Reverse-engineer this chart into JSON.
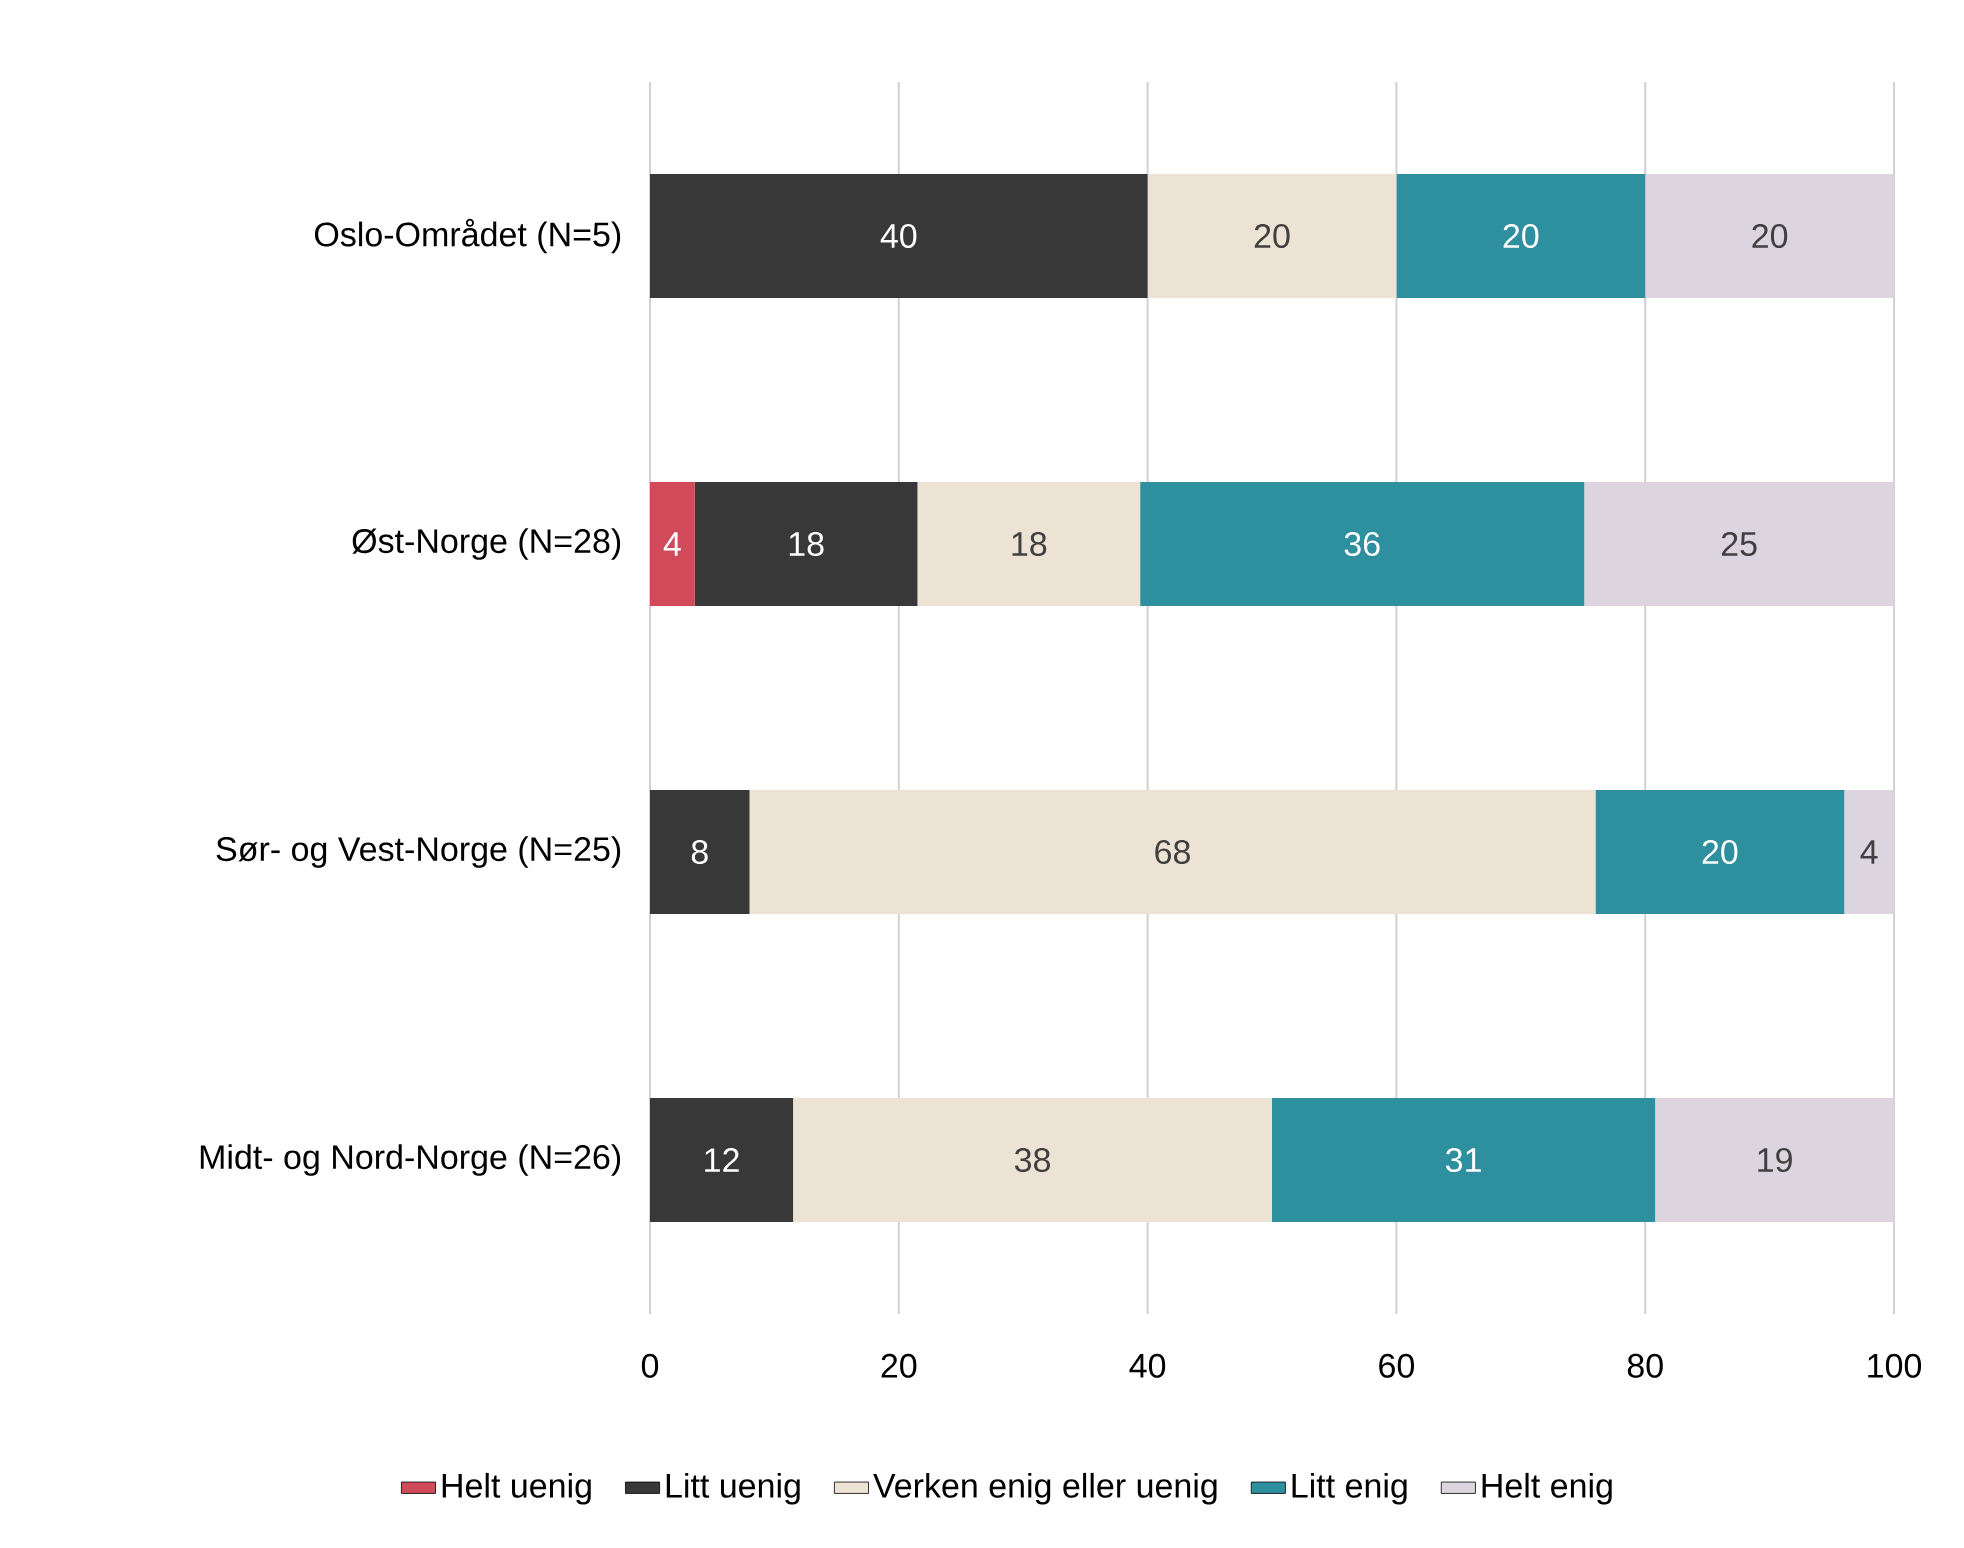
{
  "chart_data": {
    "type": "bar",
    "orientation": "horizontal",
    "stacked": true,
    "categories": [
      "Oslo-Området (N=5)",
      "Øst-Norge (N=28)",
      "Sør- og Vest-Norge (N=25)",
      "Midt- og Nord-Norge (N=26)"
    ],
    "series": [
      {
        "name": "Helt uenig",
        "color": "#d04a5a",
        "values": [
          0,
          3.6,
          0,
          0
        ],
        "value_labels": [
          null,
          "4",
          null,
          null
        ]
      },
      {
        "name": "Litt uenig",
        "color": "#383838",
        "values": [
          40,
          17.9,
          8,
          11.5
        ],
        "value_labels": [
          "40",
          "18",
          "8",
          "12"
        ]
      },
      {
        "name": "Verken enig eller uenig",
        "color": "#ede3d4",
        "values": [
          20,
          17.9,
          68,
          38.5
        ],
        "value_labels": [
          "20",
          "18",
          "68",
          "38"
        ]
      },
      {
        "name": "Litt enig",
        "color": "#2e8f9e",
        "values": [
          20,
          35.7,
          20,
          30.8
        ],
        "value_labels": [
          "20",
          "36",
          "20",
          "31"
        ]
      },
      {
        "name": "Helt enig",
        "color": "#dcd5e0",
        "values": [
          20,
          24.9,
          4,
          19.2
        ],
        "value_labels": [
          "20",
          "25",
          "4",
          "19"
        ]
      }
    ],
    "xlim": [
      0,
      100
    ],
    "xticks": [
      0,
      20,
      40,
      60,
      80,
      100
    ],
    "grid": "x",
    "legend": "bottom"
  }
}
